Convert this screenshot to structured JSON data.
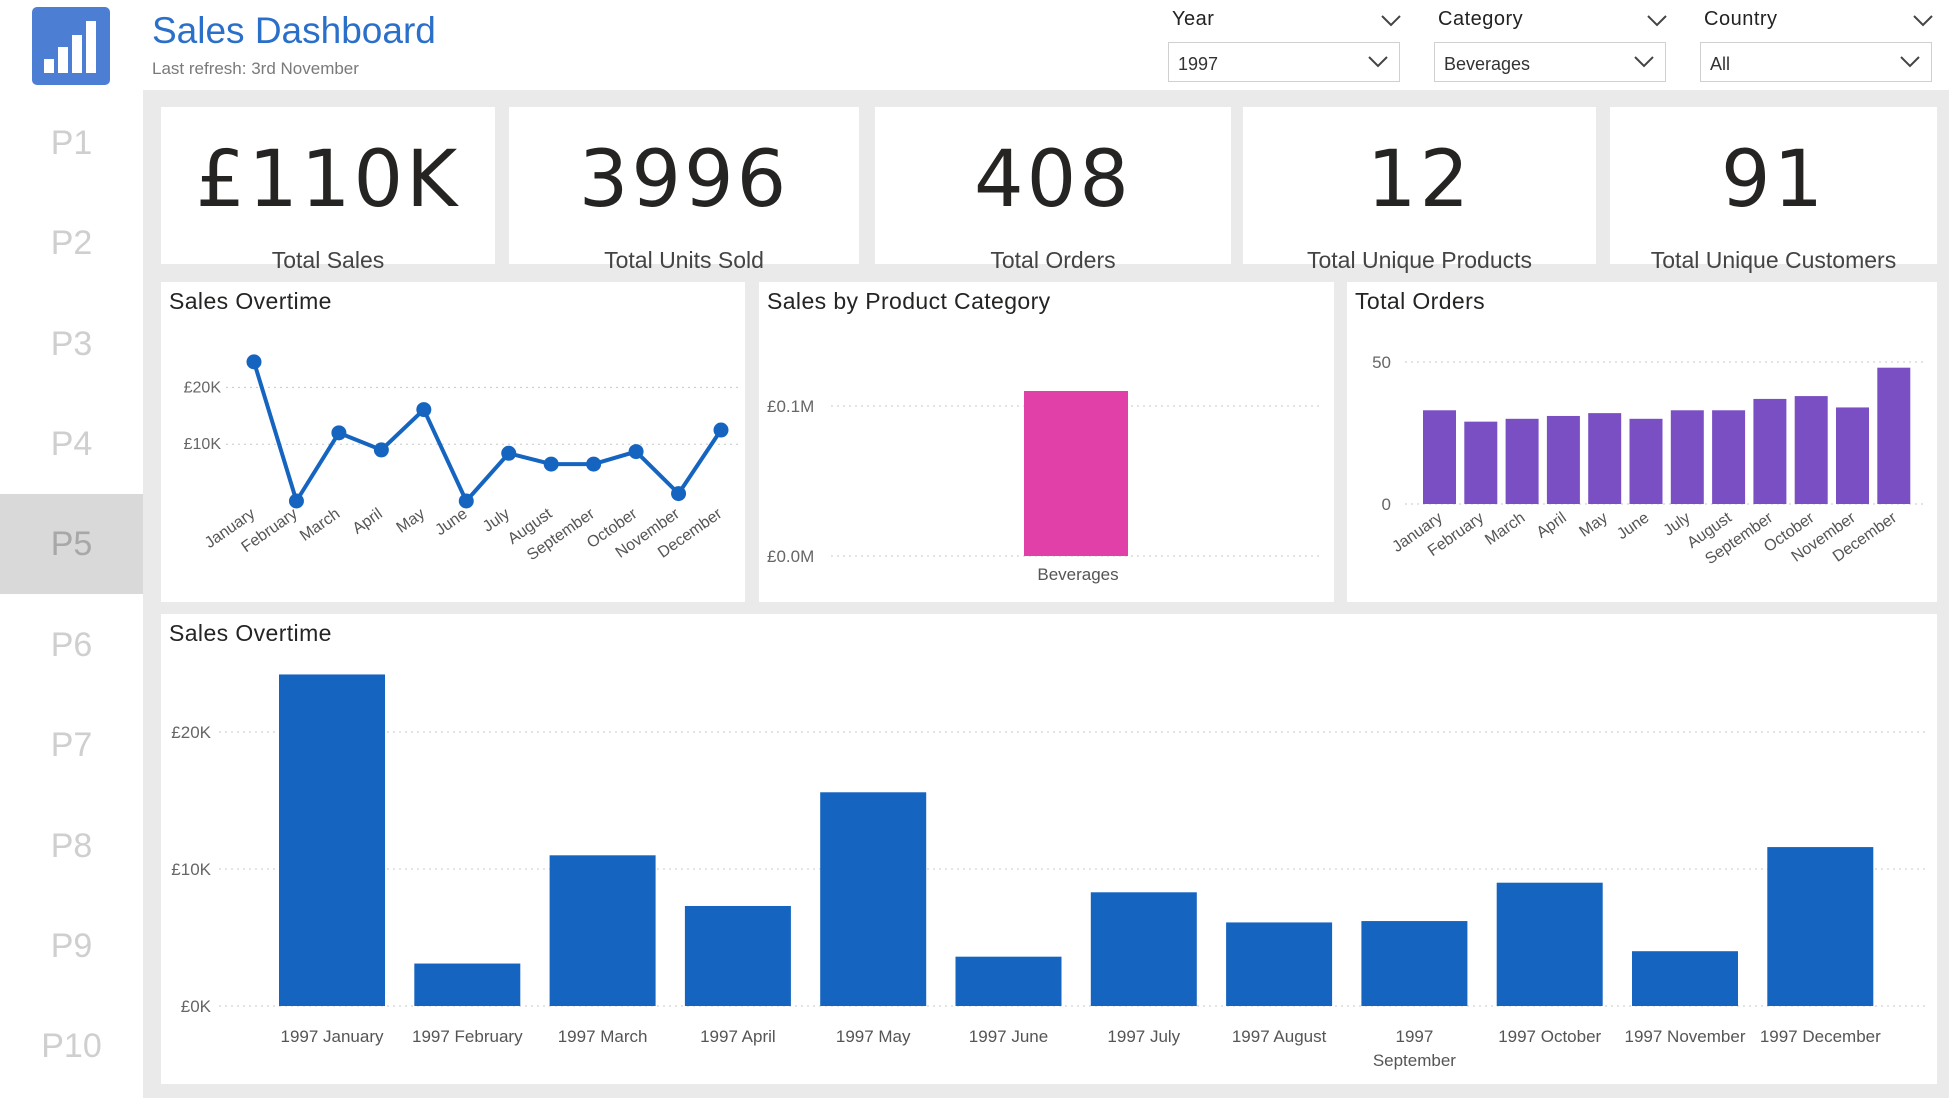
{
  "header": {
    "title": "Sales Dashboard",
    "refresh": "Last refresh: 3rd November",
    "logo_icon": "bar-chart-icon"
  },
  "filters": [
    {
      "label": "Year",
      "value": "1997"
    },
    {
      "label": "Category",
      "value": "Beverages"
    },
    {
      "label": "Country",
      "value": "All"
    }
  ],
  "nav": {
    "items": [
      "P1",
      "P2",
      "P3",
      "P4",
      "P5",
      "P6",
      "P7",
      "P8",
      "P9",
      "P10"
    ],
    "active_index": 4
  },
  "kpis": [
    {
      "value": "£110K",
      "label": "Total Sales"
    },
    {
      "value": "3996",
      "label": "Total Units Sold"
    },
    {
      "value": "408",
      "label": "Total Orders"
    },
    {
      "value": "12",
      "label": "Total Unique Products"
    },
    {
      "value": "91",
      "label": "Total Unique Customers"
    }
  ],
  "colors": {
    "line": "#1565c0",
    "category_bar": "#e040a8",
    "orders_bar": "#7b4fc4",
    "monthly_bar": "#1565c0",
    "title": "#2a6fc9"
  },
  "chart_data": [
    {
      "type": "line",
      "title": "Sales Overtime",
      "categories": [
        "January",
        "February",
        "March",
        "April",
        "May",
        "June",
        "July",
        "August",
        "September",
        "October",
        "November",
        "December"
      ],
      "values": [
        24500,
        0,
        12000,
        9000,
        16100,
        0,
        8400,
        6500,
        6500,
        8700,
        1300,
        12500
      ],
      "yticks": [
        10000,
        20000
      ],
      "ytick_labels": [
        "£10K",
        "£20K"
      ],
      "ylim": [
        0,
        28000
      ]
    },
    {
      "type": "bar",
      "title": "Sales by Product Category",
      "categories": [
        "Beverages"
      ],
      "values": [
        0.11
      ],
      "yticks": [
        0,
        0.1
      ],
      "ytick_labels": [
        "£0.0M",
        "£0.1M"
      ],
      "ylim": [
        0,
        0.12
      ]
    },
    {
      "type": "bar",
      "title": "Total Orders",
      "categories": [
        "January",
        "February",
        "March",
        "April",
        "May",
        "June",
        "July",
        "August",
        "September",
        "October",
        "November",
        "December"
      ],
      "values": [
        33,
        29,
        30,
        31,
        32,
        30,
        33,
        33,
        37,
        38,
        34,
        48
      ],
      "yticks": [
        0,
        50
      ],
      "ytick_labels": [
        "0",
        "50"
      ],
      "ylim": [
        0,
        50
      ]
    },
    {
      "type": "bar",
      "title": "Sales Overtime",
      "categories": [
        "1997 January",
        "1997 February",
        "1997 March",
        "1997 April",
        "1997 May",
        "1997 June",
        "1997 July",
        "1997 August",
        "1997 September",
        "1997 October",
        "1997 November",
        "1997 December"
      ],
      "values": [
        24200,
        3100,
        11000,
        7300,
        15600,
        3600,
        8300,
        6100,
        6200,
        9000,
        4000,
        11600
      ],
      "yticks": [
        0,
        10000,
        20000
      ],
      "ytick_labels": [
        "£0K",
        "£10K",
        "£20K"
      ],
      "ylim": [
        0,
        24200
      ]
    }
  ]
}
